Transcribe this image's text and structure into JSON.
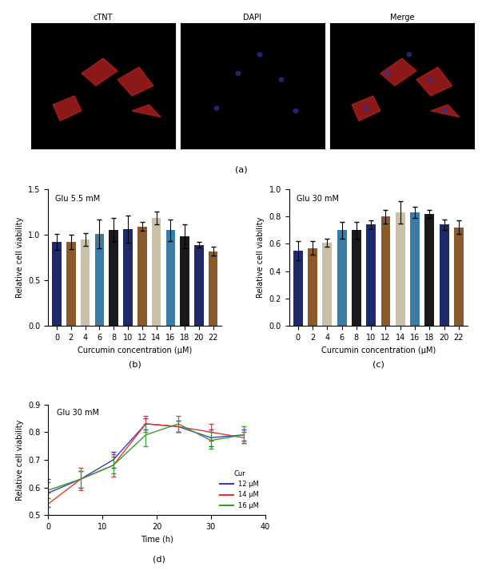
{
  "chart_data": [
    {
      "type": "image",
      "caption": "(a)",
      "labels": [
        "cTNT",
        "DAPI",
        "Merge"
      ]
    },
    {
      "type": "bar",
      "caption": "(b)",
      "title": "Glu 5.5 mM",
      "x_label": "Curcumin concentration (μM)",
      "y_label": "Relative cell viability",
      "categories": [
        "0",
        "2",
        "4",
        "6",
        "8",
        "10",
        "12",
        "14",
        "16",
        "18",
        "20",
        "22"
      ],
      "values": [
        0.92,
        0.92,
        0.95,
        1.01,
        1.05,
        1.06,
        1.09,
        1.18,
        1.05,
        0.98,
        0.89,
        0.82
      ],
      "errors": [
        0.09,
        0.08,
        0.07,
        0.16,
        0.13,
        0.15,
        0.05,
        0.07,
        0.12,
        0.13,
        0.03,
        0.05
      ],
      "colors": [
        "#1f2a6b",
        "#8b5a2b",
        "#c9c0a8",
        "#3a7ca5",
        "#1a1a1a",
        "#1f2a6b",
        "#8b5a2b",
        "#c9c0a8",
        "#3a7ca5",
        "#1a1a1a",
        "#1f2a6b",
        "#8b5a2b"
      ],
      "ylim": [
        0,
        1.5
      ],
      "yticks": [
        {
          "value": 0,
          "label": "0.0"
        },
        {
          "value": 0.5,
          "label": "0.5"
        },
        {
          "value": 1,
          "label": "1.0"
        },
        {
          "value": 1.5,
          "label": "1.5"
        }
      ]
    },
    {
      "type": "bar",
      "caption": "(c)",
      "title": "Glu 30 mM",
      "x_label": "Curcumin concentration (μM)",
      "y_label": "Relative cell viability",
      "categories": [
        "0",
        "2",
        "4",
        "6",
        "8",
        "10",
        "12",
        "14",
        "16",
        "18",
        "20",
        "22"
      ],
      "values": [
        0.55,
        0.57,
        0.61,
        0.7,
        0.7,
        0.74,
        0.8,
        0.83,
        0.83,
        0.82,
        0.74,
        0.72
      ],
      "errors": [
        0.07,
        0.05,
        0.03,
        0.06,
        0.06,
        0.03,
        0.05,
        0.08,
        0.04,
        0.03,
        0.04,
        0.05
      ],
      "colors": [
        "#1f2a6b",
        "#8b5a2b",
        "#c9c0a8",
        "#3a7ca5",
        "#1a1a1a",
        "#1f2a6b",
        "#8b5a2b",
        "#c9c0a8",
        "#3a7ca5",
        "#1a1a1a",
        "#1f2a6b",
        "#8b5a2b"
      ],
      "ylim": [
        0,
        1.0
      ],
      "yticks": [
        {
          "value": 0,
          "label": "0.0"
        },
        0.2,
        0.4,
        0.6,
        0.8,
        {
          "value": 1,
          "label": "1.0"
        }
      ]
    },
    {
      "type": "line",
      "caption": "(d)",
      "title": "Glu 30 mM",
      "x_label": "Time (h)",
      "y_label": "Relative cell viability",
      "legend_title": "Cur",
      "legend": "lower right",
      "x": [
        0,
        6,
        12,
        18,
        24,
        30,
        36
      ],
      "series": [
        {
          "name": "12 μM",
          "color": "#3b3bbf",
          "values": [
            0.58,
            0.63,
            0.7,
            0.83,
            0.82,
            0.78,
            0.79
          ],
          "errors": [
            0.05,
            0.03,
            0.03,
            0.02,
            0.02,
            0.03,
            0.02
          ]
        },
        {
          "name": "14 μM",
          "color": "#e8352e",
          "values": [
            0.54,
            0.63,
            0.68,
            0.83,
            0.82,
            0.8,
            0.78
          ],
          "errors": [
            0.04,
            0.04,
            0.04,
            0.03,
            0.02,
            0.03,
            0.02
          ]
        },
        {
          "name": "16 μM",
          "color": "#2ca02c",
          "values": [
            0.59,
            0.63,
            0.68,
            0.79,
            0.83,
            0.77,
            0.79
          ],
          "errors": [
            0.03,
            0.03,
            0.03,
            0.04,
            0.03,
            0.03,
            0.03
          ]
        }
      ],
      "xlim": [
        0,
        40
      ],
      "xticks": [
        0,
        10,
        20,
        30,
        40
      ],
      "ylim": [
        0.5,
        0.9
      ],
      "yticks": [
        0.5,
        0.6,
        0.7,
        0.8,
        0.9
      ]
    }
  ]
}
